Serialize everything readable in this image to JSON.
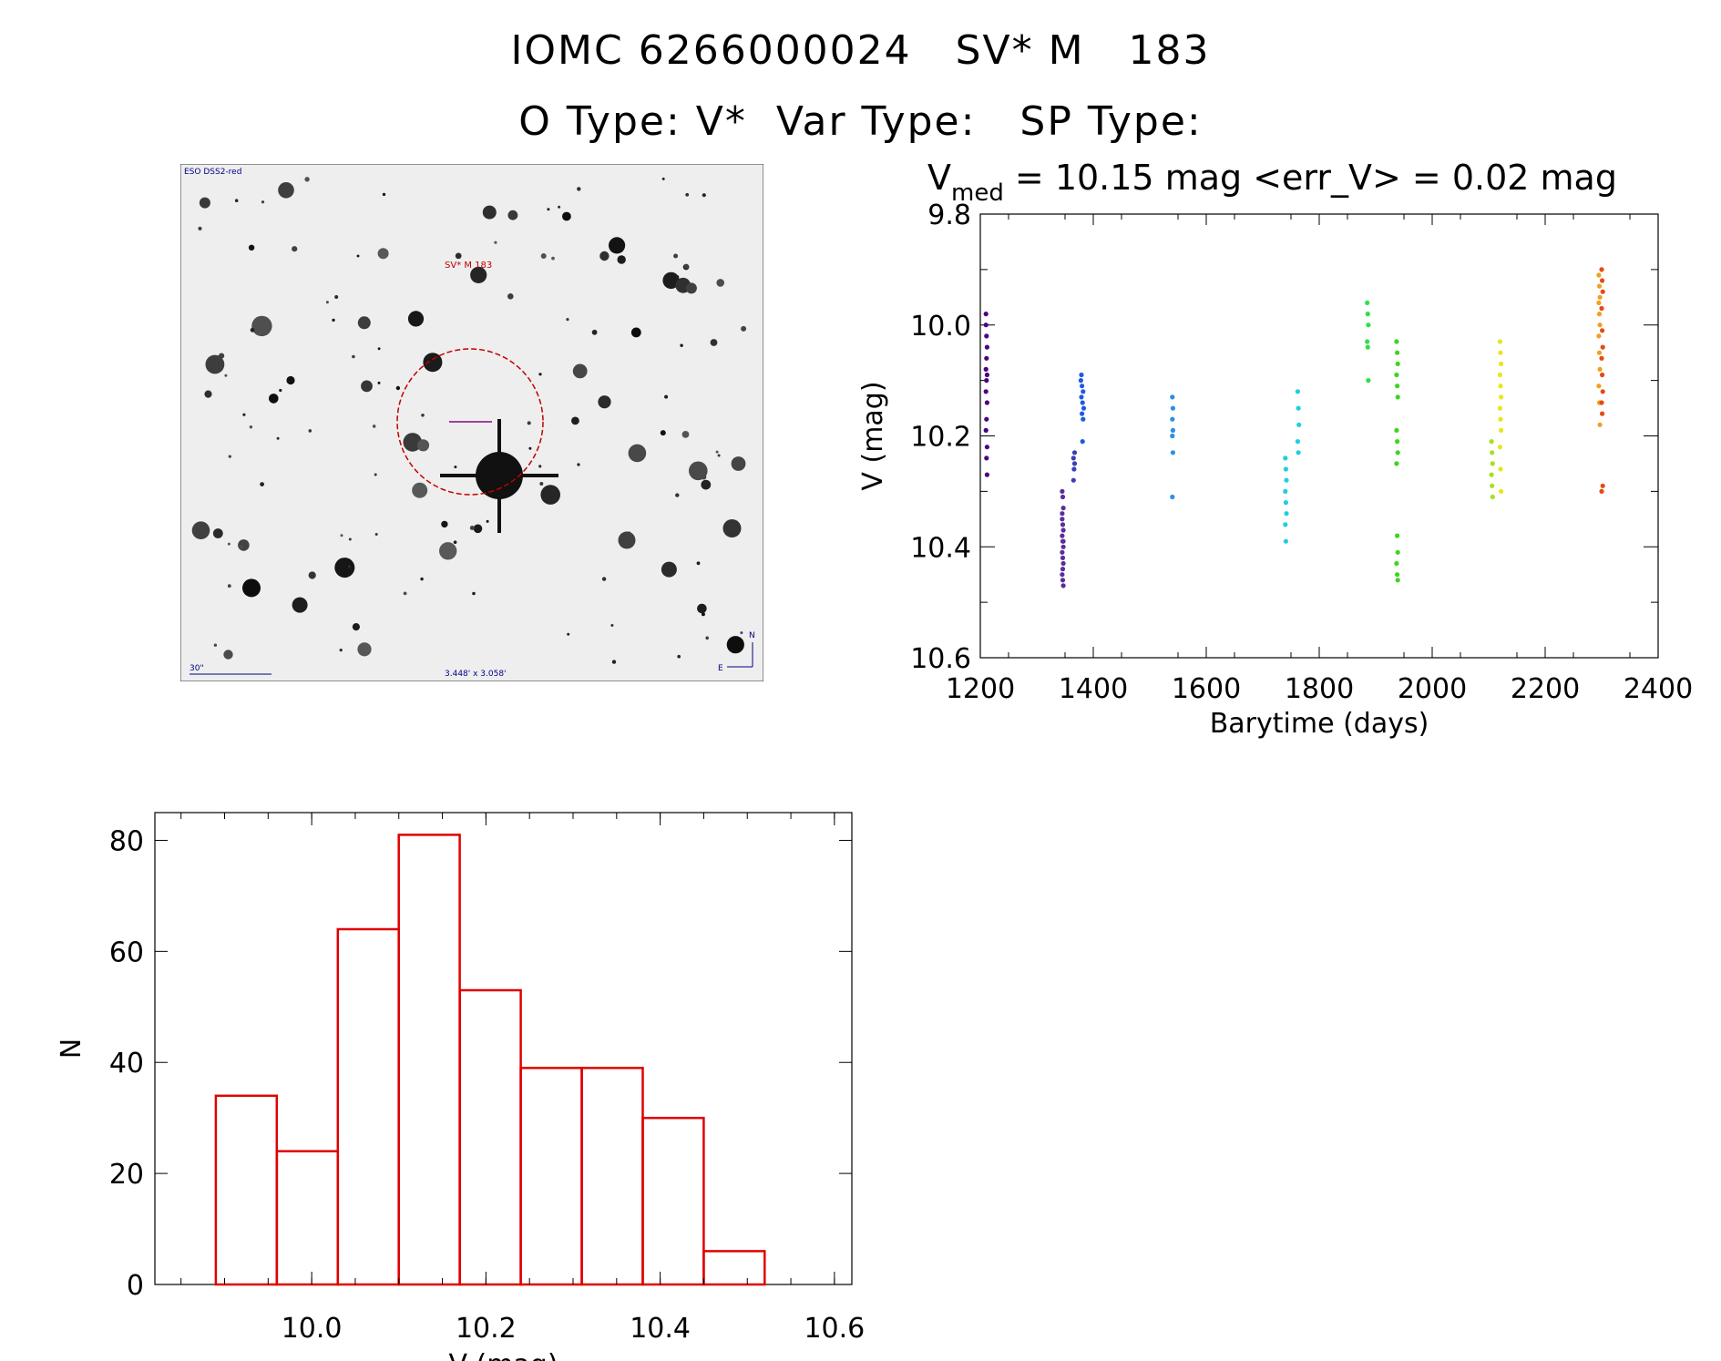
{
  "header": {
    "line1": "IOMC 6266000024   SV* M   183",
    "line2": "O Type: V*  Var Type:   SP Type:"
  },
  "finder": {
    "survey_label": "ESO DSS2-red",
    "object_label": "SV* M 183",
    "scale_label": "30\"",
    "size_label": "3.448' x 3.058'",
    "north_label": "N",
    "east_label": "E",
    "colors": {
      "circle": "#c00000",
      "cross": "#a040a0",
      "text": "#00008b",
      "label": "#c00000"
    }
  },
  "chart_data": [
    {
      "type": "scatter",
      "name": "light-curve",
      "title_prefix": "V",
      "title_subscript": "med",
      "title_rest": " = 10.15 mag <err_V> = 0.02 mag",
      "xlabel": "Barytime (days)",
      "ylabel": "V (mag)",
      "xlim": [
        1200,
        2400
      ],
      "ylim": [
        10.6,
        9.8
      ],
      "xticks": [
        "1200",
        "1400",
        "1600",
        "1800",
        "2000",
        "2200",
        "2400"
      ],
      "yticks": [
        "9.8",
        "10.0",
        "10.2",
        "10.4",
        "10.6"
      ],
      "groups": [
        {
          "color": "#4b0082",
          "points": [
            [
              1210,
              10.0
            ],
            [
              1211,
              10.02
            ],
            [
              1212,
              10.04
            ],
            [
              1211,
              10.06
            ],
            [
              1210,
              10.08
            ],
            [
              1212,
              10.09
            ],
            [
              1211,
              10.1
            ],
            [
              1210,
              10.12
            ],
            [
              1212,
              10.14
            ],
            [
              1211,
              10.17
            ],
            [
              1210,
              10.19
            ],
            [
              1212,
              10.22
            ],
            [
              1211,
              10.24
            ],
            [
              1212,
              10.27
            ],
            [
              1210,
              9.98
            ]
          ]
        },
        {
          "color": "#5a2d9c",
          "points": [
            [
              1345,
              10.3
            ],
            [
              1346,
              10.31
            ],
            [
              1347,
              10.33
            ],
            [
              1345,
              10.34
            ],
            [
              1346,
              10.36
            ],
            [
              1347,
              10.37
            ],
            [
              1345,
              10.38
            ],
            [
              1346,
              10.39
            ],
            [
              1347,
              10.4
            ],
            [
              1345,
              10.41
            ],
            [
              1346,
              10.42
            ],
            [
              1347,
              10.43
            ],
            [
              1345,
              10.45
            ],
            [
              1346,
              10.46
            ],
            [
              1347,
              10.47
            ],
            [
              1345,
              10.35
            ],
            [
              1346,
              10.44
            ],
            [
              1347,
              10.39
            ]
          ]
        },
        {
          "color": "#3a3fb8",
          "points": [
            [
              1365,
              10.24
            ],
            [
              1367,
              10.25
            ],
            [
              1366,
              10.26
            ],
            [
              1365,
              10.28
            ],
            [
              1367,
              10.23
            ]
          ]
        },
        {
          "color": "#1e5ae0",
          "points": [
            [
              1378,
              10.1
            ],
            [
              1380,
              10.11
            ],
            [
              1382,
              10.12
            ],
            [
              1379,
              10.13
            ],
            [
              1381,
              10.14
            ],
            [
              1383,
              10.15
            ],
            [
              1380,
              10.16
            ],
            [
              1382,
              10.17
            ],
            [
              1379,
              10.09
            ],
            [
              1381,
              10.21
            ]
          ]
        },
        {
          "color": "#2a8ee8",
          "points": [
            [
              1540,
              10.13
            ],
            [
              1541,
              10.15
            ],
            [
              1540,
              10.17
            ],
            [
              1541,
              10.19
            ],
            [
              1540,
              10.2
            ],
            [
              1541,
              10.23
            ],
            [
              1540,
              10.31
            ]
          ]
        },
        {
          "color": "#1ecfe0",
          "points": [
            [
              1740,
              10.24
            ],
            [
              1741,
              10.26
            ],
            [
              1742,
              10.28
            ],
            [
              1740,
              10.3
            ],
            [
              1741,
              10.32
            ],
            [
              1742,
              10.34
            ],
            [
              1740,
              10.36
            ],
            [
              1741,
              10.39
            ],
            [
              1762,
              10.12
            ],
            [
              1763,
              10.15
            ],
            [
              1764,
              10.18
            ],
            [
              1762,
              10.21
            ],
            [
              1763,
              10.23
            ]
          ]
        },
        {
          "color": "#2ee04a",
          "points": [
            [
              1885,
              9.96
            ],
            [
              1886,
              9.98
            ],
            [
              1887,
              10.0
            ],
            [
              1885,
              10.03
            ],
            [
              1886,
              10.04
            ],
            [
              1887,
              10.1
            ]
          ]
        },
        {
          "color": "#3cd61e",
          "points": [
            [
              1937,
              10.03
            ],
            [
              1938,
              10.05
            ],
            [
              1939,
              10.07
            ],
            [
              1937,
              10.09
            ],
            [
              1938,
              10.11
            ],
            [
              1939,
              10.13
            ],
            [
              1937,
              10.19
            ],
            [
              1938,
              10.21
            ],
            [
              1939,
              10.23
            ],
            [
              1937,
              10.25
            ],
            [
              1938,
              10.38
            ],
            [
              1939,
              10.41
            ],
            [
              1937,
              10.43
            ],
            [
              1938,
              10.45
            ],
            [
              1939,
              10.46
            ]
          ]
        },
        {
          "color": "#a8e01e",
          "points": [
            [
              2105,
              10.21
            ],
            [
              2106,
              10.23
            ],
            [
              2107,
              10.25
            ],
            [
              2105,
              10.27
            ],
            [
              2106,
              10.29
            ],
            [
              2107,
              10.31
            ]
          ]
        },
        {
          "color": "#e6e61e",
          "points": [
            [
              2120,
              10.03
            ],
            [
              2121,
              10.05
            ],
            [
              2122,
              10.07
            ],
            [
              2120,
              10.09
            ],
            [
              2121,
              10.11
            ],
            [
              2122,
              10.13
            ],
            [
              2120,
              10.15
            ],
            [
              2121,
              10.17
            ],
            [
              2122,
              10.19
            ],
            [
              2120,
              10.22
            ],
            [
              2121,
              10.26
            ],
            [
              2122,
              10.3
            ]
          ]
        },
        {
          "color": "#f0a020",
          "points": [
            [
              2295,
              9.91
            ],
            [
              2296,
              9.93
            ],
            [
              2297,
              9.95
            ],
            [
              2295,
              9.96
            ],
            [
              2296,
              9.98
            ],
            [
              2297,
              10.0
            ],
            [
              2295,
              10.02
            ],
            [
              2296,
              10.05
            ],
            [
              2297,
              10.08
            ],
            [
              2295,
              10.11
            ],
            [
              2296,
              10.14
            ],
            [
              2297,
              10.18
            ]
          ]
        },
        {
          "color": "#e64a10",
          "points": [
            [
              2300,
              9.9
            ],
            [
              2301,
              9.92
            ],
            [
              2302,
              9.94
            ],
            [
              2300,
              9.97
            ],
            [
              2301,
              10.01
            ],
            [
              2302,
              10.04
            ],
            [
              2300,
              10.06
            ],
            [
              2301,
              10.09
            ],
            [
              2302,
              10.12
            ],
            [
              2300,
              10.14
            ],
            [
              2301,
              10.16
            ],
            [
              2302,
              10.29
            ],
            [
              2300,
              10.3
            ]
          ]
        }
      ]
    },
    {
      "type": "bar",
      "name": "histogram",
      "xlabel": "V (mag)",
      "ylabel": "N",
      "xlim": [
        9.82,
        10.62
      ],
      "ylim": [
        0,
        85
      ],
      "xticks": [
        "10.0",
        "10.2",
        "10.4",
        "10.6"
      ],
      "yticks": [
        "0",
        "20",
        "40",
        "60",
        "80"
      ],
      "bar_color": "#e00000",
      "bin_edges": [
        9.89,
        9.96,
        10.03,
        10.1,
        10.17,
        10.24,
        10.31,
        10.38,
        10.45,
        10.52
      ],
      "values": [
        34,
        24,
        64,
        81,
        53,
        39,
        39,
        30,
        6
      ]
    }
  ]
}
